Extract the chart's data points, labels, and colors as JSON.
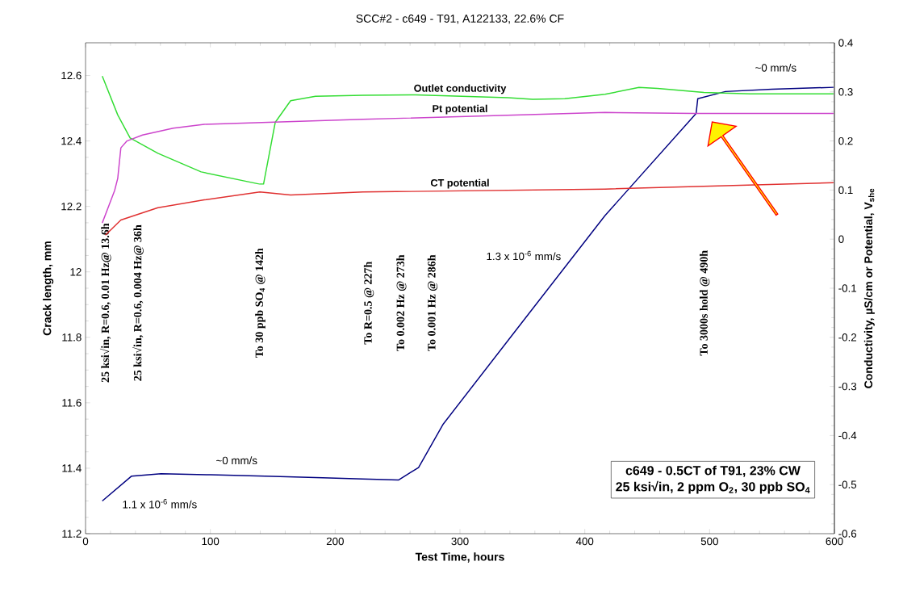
{
  "chart_data": {
    "type": "line",
    "title": "SCC#2 - c649 - T91, A122133, 22.6% CF",
    "xlabel": "Test Time, hours",
    "ylabel": "Crack length, mm",
    "y2label": "Conductivity, µS/cm or Potential, V$_{she}$",
    "xlim": [
      0,
      600
    ],
    "xticks": [
      0,
      100,
      200,
      300,
      400,
      500,
      600
    ],
    "ylim": [
      11.2,
      12.7
    ],
    "yticks": [
      11.2,
      11.4,
      11.6,
      11.8,
      12,
      12.2,
      12.4,
      12.6
    ],
    "y2lim": [
      -0.6,
      0.4
    ],
    "y2ticks": [
      -0.6,
      -0.5,
      -0.4,
      -0.3,
      -0.2,
      -0.1,
      0,
      0.1,
      0.2,
      0.3,
      0.4
    ],
    "series": [
      {
        "color": "#000080",
        "x": [
          13.4,
          36.9,
          60.5,
          100,
          150,
          190,
          222,
          250.7,
          266.8,
          286.6,
          350,
          416.2,
          489.2,
          490.5,
          512.7,
          550,
          599.3
        ],
        "values": [
          11.3,
          11.376,
          11.383,
          11.38,
          11.375,
          11.371,
          11.367,
          11.364,
          11.402,
          11.535,
          11.847,
          12.172,
          12.484,
          12.529,
          12.551,
          12.558,
          12.564
        ]
      },
      {
        "name": "Outlet conductivity",
        "color": "#33dd33",
        "axis": "y2",
        "x": [
          13.4,
          25.8,
          35.7,
          58,
          92.6,
          139.7,
          142.6,
          152,
          164.3,
          184.2,
          222.3,
          264.3,
          338.5,
          358.3,
          384,
          416.2,
          443.4,
          458.3,
          495.4,
          532.5,
          599.3
        ],
        "values": [
          0.332,
          0.253,
          0.206,
          0.175,
          0.137,
          0.112,
          0.112,
          0.238,
          0.282,
          0.291,
          0.293,
          0.294,
          0.288,
          0.285,
          0.286,
          0.295,
          0.309,
          0.307,
          0.299,
          0.296,
          0.296
        ]
      },
      {
        "name": "Pt potential",
        "color": "#cc44cc",
        "axis": "y2",
        "x": [
          13.4,
          23.3,
          25.8,
          28.3,
          33.2,
          45.6,
          70.3,
          95.1,
          222.3,
          416.2,
          488,
          599.3
        ],
        "values": [
          0.033,
          0.099,
          0.124,
          0.186,
          0.2,
          0.212,
          0.226,
          0.234,
          0.244,
          0.258,
          0.256,
          0.256
        ]
      },
      {
        "name": "CT potential",
        "color": "#e03030",
        "axis": "y2",
        "x": [
          15.9,
          28.3,
          58,
          95.1,
          139.7,
          164.3,
          222.3,
          416.2,
          599.3
        ],
        "values": [
          0.008,
          0.039,
          0.064,
          0.08,
          0.096,
          0.09,
          0.096,
          0.102,
          0.115
        ]
      }
    ],
    "annotations": [
      "25 ksi√in, R=0.6, 0.01 Hz@ 13.6h",
      "25 ksi√in, R=0.6, 0.004 Hz@ 36h",
      "To 30 ppb SO$_{4}$ @ 142h",
      "To R=0.5 @ 227h",
      "To 0.002 Hz @ 273h",
      "To 0.001 Hz @ 286h",
      "To 3000s hold @ 490h",
      "1.1 x 10$^{-6}$ mm/s",
      "~0 mm/s",
      "1.3 x 10$^{-6}$ mm/s",
      "~0 mm/s",
      "c649 - 0.5CT of T91, 23% CW",
      "25 ksi√in, 2 ppm O$_{2}$, 30 ppb SO$_{4}$"
    ]
  }
}
